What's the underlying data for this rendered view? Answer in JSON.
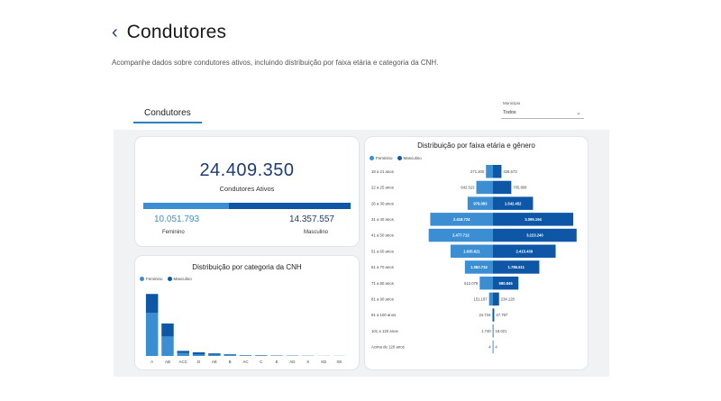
{
  "page": {
    "title": "Condutores",
    "subtitle": "Acompanhe dados sobre condutores ativos, incluindo distribuição por faixa etária e categoria da CNH."
  },
  "report": {
    "tab_label": "Condutores",
    "municipio_label": "Município",
    "municipio_value": "Todos"
  },
  "kpi": {
    "total": "24.409.350",
    "total_label": "Condutores Ativos",
    "female_value": "10.051.793",
    "female_label": "Feminino",
    "male_value": "14.357.557",
    "male_label": "Masculino",
    "female_share": 0.4118
  },
  "colors": {
    "female": "#3c8ed2",
    "male": "#0d57a6",
    "title_blue": "#1f3b73"
  },
  "chart_data": [
    {
      "type": "bar",
      "title": "Distribuição por categoria da CNH",
      "legend": [
        "Feminino",
        "Masculino"
      ],
      "categories": [
        "A",
        "AB",
        "ACC",
        "D",
        "AE",
        "B",
        "AC",
        "C",
        "E",
        "AD",
        "X",
        "XD",
        "XE"
      ],
      "series": [
        {
          "name": "Feminino",
          "values": [
            6.0,
            2.7,
            0.4,
            0.2,
            0.15,
            0.12,
            0.05,
            0.05,
            0.03,
            0.03,
            0.02,
            0.01,
            0.01
          ]
        },
        {
          "name": "Masculino",
          "values": [
            2.6,
            1.8,
            0.3,
            0.3,
            0.2,
            0.1,
            0.05,
            0.05,
            0.04,
            0.03,
            0.02,
            0.01,
            0.01
          ]
        }
      ],
      "stacked": true,
      "legend_position": "top-left"
    },
    {
      "type": "bar",
      "title": "Distribuição por faixa etária e gênero",
      "orientation": "horizontal-diverging",
      "legend": [
        "Feminino",
        "Masculino"
      ],
      "categories": [
        "18 a 21 anos",
        "22 a 25 anos",
        "26 a 30 anos",
        "31 a 40 anos",
        "41 a 50 anos",
        "51 a 60 anos",
        "61 a 70 anos",
        "71 a 80 anos",
        "81 a 90 anos",
        "91 a 100 anos",
        "101 a 120 anos",
        "Acima de 120 anos"
      ],
      "series": [
        {
          "name": "Feminino",
          "values": [
            271200,
            642523,
            979083,
            2418724,
            2477712,
            1635621,
            1082734,
            512079,
            151187,
            24734,
            1740,
            4
          ],
          "labels": [
            "271.200",
            "642.523",
            "979.083",
            "2.418.724",
            "2.477.712",
            "1.635.621",
            "1.082.734",
            "512.079",
            "151.187",
            "24.734",
            "1.740",
            "4"
          ]
        },
        {
          "name": "Masculino",
          "values": [
            326573,
            705808,
            1542452,
            3095194,
            3223240,
            2415439,
            1786511,
            980845,
            234128,
            47797,
            18021,
            4
          ],
          "labels": [
            "326.573",
            "705.808",
            "1.542.452",
            "3.095.194",
            "3.223.240",
            "2.415.439",
            "1.786.511",
            "980.845",
            "234.128",
            "47.797",
            "18.021",
            "4"
          ]
        }
      ],
      "legend_position": "top-left"
    }
  ]
}
